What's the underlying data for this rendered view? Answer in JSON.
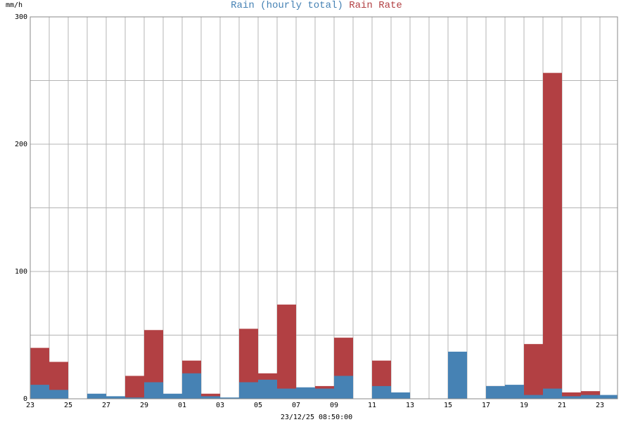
{
  "chart_data": {
    "type": "bar",
    "stacked": true,
    "legend_placement": "top",
    "grid": true,
    "y_unit": "mm/h",
    "ylim": [
      0,
      300
    ],
    "y_ticks": [
      "0",
      "100",
      "200",
      "300"
    ],
    "x_ticks": [
      "23",
      "25",
      "27",
      "29",
      "01",
      "03",
      "05",
      "07",
      "09",
      "11",
      "13",
      "15",
      "17",
      "19",
      "21",
      "23"
    ],
    "timestamp": "23/12/25 08:50:00",
    "series": [
      {
        "name": "Rain (hourly total)",
        "color": "#4682b4",
        "values": [
          11,
          7,
          0,
          4,
          2,
          1,
          13,
          4,
          20,
          2,
          1,
          13,
          15,
          8,
          9,
          8,
          18,
          0,
          10,
          5,
          0,
          0,
          37,
          0,
          10,
          11,
          3,
          8,
          2,
          3,
          3
        ]
      },
      {
        "name": "Rain Rate",
        "color": "#b24043",
        "values": [
          40,
          29,
          0,
          0,
          0,
          18,
          54,
          0,
          30,
          4,
          0,
          55,
          20,
          74,
          0,
          10,
          48,
          0,
          30,
          0,
          0,
          0,
          0,
          0,
          10,
          0,
          43,
          256,
          5,
          6,
          0
        ]
      }
    ]
  }
}
